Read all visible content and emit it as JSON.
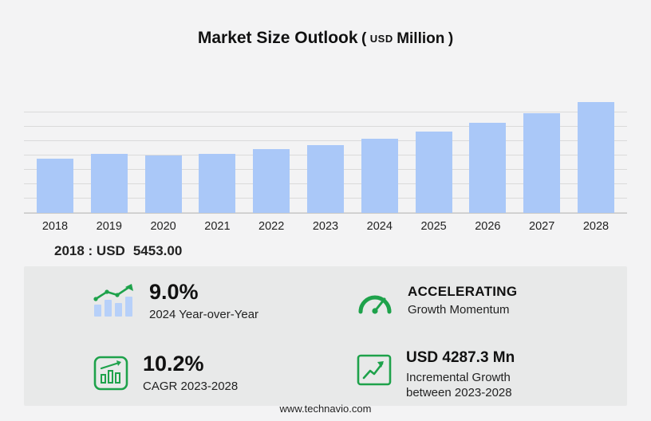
{
  "title": {
    "main": "Market Size Outlook",
    "paren_open": "(",
    "unit_small": "USD",
    "unit_big": "Million",
    "paren_close": ")"
  },
  "chart_data": {
    "type": "bar",
    "title": "Market Size Outlook (USD Million)",
    "categories": [
      "2018",
      "2019",
      "2020",
      "2021",
      "2022",
      "2023",
      "2024",
      "2025",
      "2026",
      "2027",
      "2028"
    ],
    "values": [
      5453.0,
      5980,
      5760,
      5940,
      6400,
      6857.5,
      7474.7,
      8180,
      9050,
      10080,
      11144.8
    ],
    "xlabel": "",
    "ylabel": "USD Million",
    "ylim": [
      0,
      11500
    ],
    "grid": true,
    "legend": false,
    "bar_color": "#aac8f8"
  },
  "baseline_note": {
    "label": "2018 : USD",
    "value": "5453.00"
  },
  "stats": [
    {
      "icon": "growth-bars-icon",
      "value": "9.0%",
      "label": "2024 Year-over-Year"
    },
    {
      "icon": "speedometer-icon",
      "value": "ACCELERATING",
      "label": "Growth Momentum"
    },
    {
      "icon": "cagr-chart-icon",
      "value": "10.2%",
      "label": "CAGR 2023-2028"
    },
    {
      "icon": "incremental-growth-icon",
      "value": "USD 4287.3 Mn",
      "label": "Incremental Growth between 2023-2028"
    }
  ],
  "footer": {
    "url": "www.technavio.com"
  },
  "colors": {
    "bar": "#aac8f8",
    "accent_green": "#1ea24b",
    "panel_bg": "#e8e9e9",
    "grid": "#dadada",
    "background": "#f3f3f4"
  }
}
